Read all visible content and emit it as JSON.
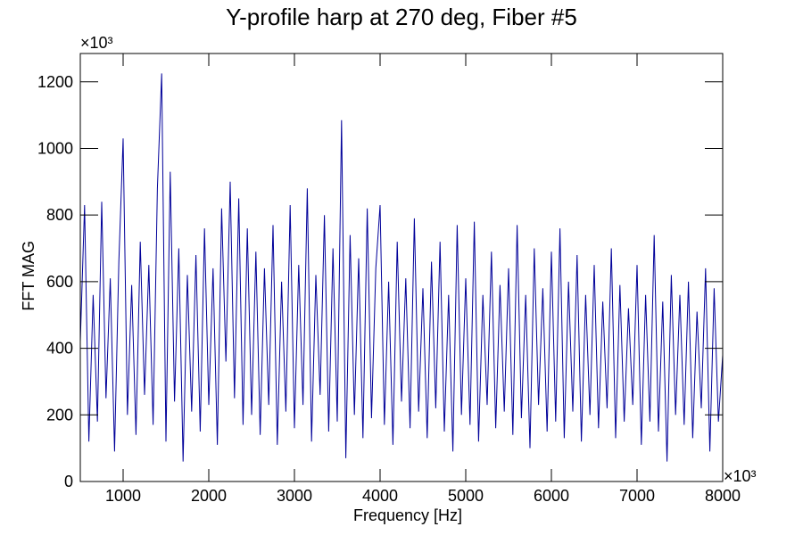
{
  "chart_data": {
    "type": "line",
    "title": "Y-profile harp at 270 deg, Fiber #5",
    "x_label": "Frequency [Hz]",
    "y_label": "FFT MAG",
    "x_multiplier": "×10³",
    "y_multiplier": "×10³",
    "color": "#000099",
    "xlim": [
      500,
      8000
    ],
    "xticks": [
      1000,
      2000,
      3000,
      4000,
      5000,
      6000,
      7000,
      8000
    ],
    "ylim": [
      0,
      1285
    ],
    "yticks": [
      0,
      200,
      400,
      600,
      800,
      1000,
      1200
    ],
    "x": [
      500,
      550,
      600,
      650,
      700,
      750,
      800,
      850,
      900,
      950,
      1000,
      1050,
      1100,
      1150,
      1200,
      1250,
      1300,
      1350,
      1400,
      1450,
      1500,
      1550,
      1600,
      1650,
      1700,
      1750,
      1800,
      1850,
      1900,
      1950,
      2000,
      2050,
      2100,
      2150,
      2200,
      2250,
      2300,
      2350,
      2400,
      2450,
      2500,
      2550,
      2600,
      2650,
      2700,
      2750,
      2800,
      2850,
      2900,
      2950,
      3000,
      3050,
      3100,
      3150,
      3200,
      3250,
      3300,
      3350,
      3400,
      3450,
      3500,
      3550,
      3600,
      3650,
      3700,
      3750,
      3800,
      3850,
      3900,
      3950,
      4000,
      4050,
      4100,
      4150,
      4200,
      4250,
      4300,
      4350,
      4400,
      4450,
      4500,
      4550,
      4600,
      4650,
      4700,
      4750,
      4800,
      4850,
      4900,
      4950,
      5000,
      5050,
      5100,
      5150,
      5200,
      5250,
      5300,
      5350,
      5400,
      5450,
      5500,
      5550,
      5600,
      5650,
      5700,
      5750,
      5800,
      5850,
      5900,
      5950,
      6000,
      6050,
      6100,
      6150,
      6200,
      6250,
      6300,
      6350,
      6400,
      6450,
      6500,
      6550,
      6600,
      6650,
      6700,
      6750,
      6800,
      6850,
      6900,
      6950,
      7000,
      7050,
      7100,
      7150,
      7200,
      7250,
      7300,
      7350,
      7400,
      7450,
      7500,
      7550,
      7600,
      7650,
      7700,
      7750,
      7800,
      7850,
      7900,
      7950,
      8000
    ],
    "values": [
      420,
      830,
      120,
      560,
      180,
      840,
      250,
      610,
      90,
      660,
      1030,
      200,
      590,
      140,
      720,
      260,
      650,
      170,
      880,
      1225,
      120,
      930,
      240,
      700,
      60,
      620,
      210,
      680,
      150,
      760,
      230,
      640,
      110,
      820,
      360,
      900,
      250,
      850,
      170,
      760,
      200,
      690,
      140,
      640,
      230,
      770,
      110,
      600,
      210,
      830,
      160,
      650,
      230,
      880,
      120,
      620,
      260,
      800,
      150,
      700,
      180,
      1085,
      70,
      740,
      200,
      670,
      130,
      820,
      190,
      640,
      830,
      170,
      600,
      110,
      720,
      240,
      610,
      160,
      790,
      210,
      580,
      130,
      660,
      220,
      720,
      150,
      560,
      90,
      770,
      200,
      610,
      170,
      780,
      120,
      560,
      230,
      690,
      160,
      590,
      210,
      640,
      140,
      770,
      190,
      560,
      100,
      700,
      230,
      580,
      150,
      690,
      180,
      760,
      130,
      600,
      210,
      680,
      120,
      560,
      200,
      650,
      160,
      540,
      220,
      700,
      130,
      590,
      180,
      520,
      230,
      650,
      110,
      560,
      180,
      740,
      150,
      540,
      60,
      620,
      200,
      560,
      170,
      600,
      130,
      510,
      220,
      640,
      90,
      580,
      180,
      380
    ]
  }
}
